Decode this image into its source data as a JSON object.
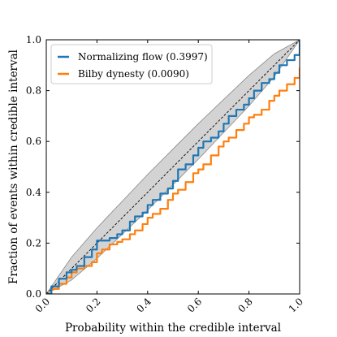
{
  "chart_data": {
    "type": "line",
    "title": "",
    "xlabel": "Probability within the credible interval",
    "ylabel": "Fraction of events within credible interval",
    "xlim": [
      0.0,
      1.0
    ],
    "ylim": [
      0.0,
      1.0
    ],
    "xticks": [
      "0.0",
      "0.2",
      "0.4",
      "0.6",
      "0.8",
      "1.0"
    ],
    "yticks": [
      "0.0",
      "0.2",
      "0.4",
      "0.6",
      "0.8",
      "1.0"
    ],
    "grid": false,
    "legend_position": "top-left",
    "confidence_band": {
      "x": [
        0.0,
        0.1,
        0.2,
        0.3,
        0.4,
        0.5,
        0.6,
        0.7,
        0.8,
        0.9,
        1.0
      ],
      "lower": [
        0.0,
        0.055,
        0.14,
        0.235,
        0.33,
        0.43,
        0.53,
        0.635,
        0.74,
        0.855,
        1.0
      ],
      "upper": [
        0.0,
        0.145,
        0.26,
        0.365,
        0.47,
        0.57,
        0.67,
        0.765,
        0.86,
        0.945,
        1.0
      ],
      "color": "#d3d3d3"
    },
    "diagonal": {
      "x": [
        0.0,
        1.0
      ],
      "y": [
        0.0,
        1.0
      ],
      "color": "#000000"
    },
    "series": [
      {
        "name": "Normalizing flow (0.3997)",
        "color": "#1f77b4",
        "x": [
          0.0,
          0.02,
          0.05,
          0.08,
          0.1,
          0.12,
          0.15,
          0.18,
          0.2,
          0.22,
          0.25,
          0.28,
          0.3,
          0.33,
          0.35,
          0.38,
          0.4,
          0.42,
          0.45,
          0.48,
          0.5,
          0.52,
          0.55,
          0.58,
          0.6,
          0.62,
          0.65,
          0.68,
          0.7,
          0.72,
          0.75,
          0.78,
          0.8,
          0.82,
          0.85,
          0.88,
          0.9,
          0.92,
          0.95,
          0.98,
          1.0
        ],
        "y": [
          0.0,
          0.03,
          0.06,
          0.085,
          0.095,
          0.11,
          0.145,
          0.175,
          0.21,
          0.21,
          0.22,
          0.235,
          0.25,
          0.285,
          0.305,
          0.32,
          0.35,
          0.37,
          0.395,
          0.415,
          0.445,
          0.49,
          0.51,
          0.545,
          0.575,
          0.6,
          0.615,
          0.64,
          0.67,
          0.7,
          0.725,
          0.745,
          0.77,
          0.8,
          0.83,
          0.845,
          0.87,
          0.9,
          0.92,
          0.94,
          1.0
        ]
      },
      {
        "name": "Bilby dynesty (0.0090)",
        "color": "#ff7f0e",
        "x": [
          0.0,
          0.02,
          0.05,
          0.08,
          0.1,
          0.12,
          0.15,
          0.18,
          0.2,
          0.22,
          0.25,
          0.28,
          0.3,
          0.33,
          0.35,
          0.38,
          0.4,
          0.42,
          0.45,
          0.48,
          0.5,
          0.52,
          0.55,
          0.58,
          0.6,
          0.62,
          0.65,
          0.68,
          0.7,
          0.72,
          0.75,
          0.78,
          0.8,
          0.82,
          0.85,
          0.88,
          0.9,
          0.92,
          0.95,
          0.98,
          1.0
        ],
        "y": [
          0.0,
          0.02,
          0.04,
          0.065,
          0.085,
          0.1,
          0.11,
          0.125,
          0.16,
          0.175,
          0.195,
          0.205,
          0.215,
          0.235,
          0.25,
          0.275,
          0.3,
          0.315,
          0.335,
          0.37,
          0.395,
          0.41,
          0.44,
          0.475,
          0.49,
          0.51,
          0.545,
          0.58,
          0.6,
          0.615,
          0.645,
          0.67,
          0.695,
          0.705,
          0.725,
          0.76,
          0.78,
          0.8,
          0.825,
          0.85,
          0.89
        ]
      }
    ]
  }
}
